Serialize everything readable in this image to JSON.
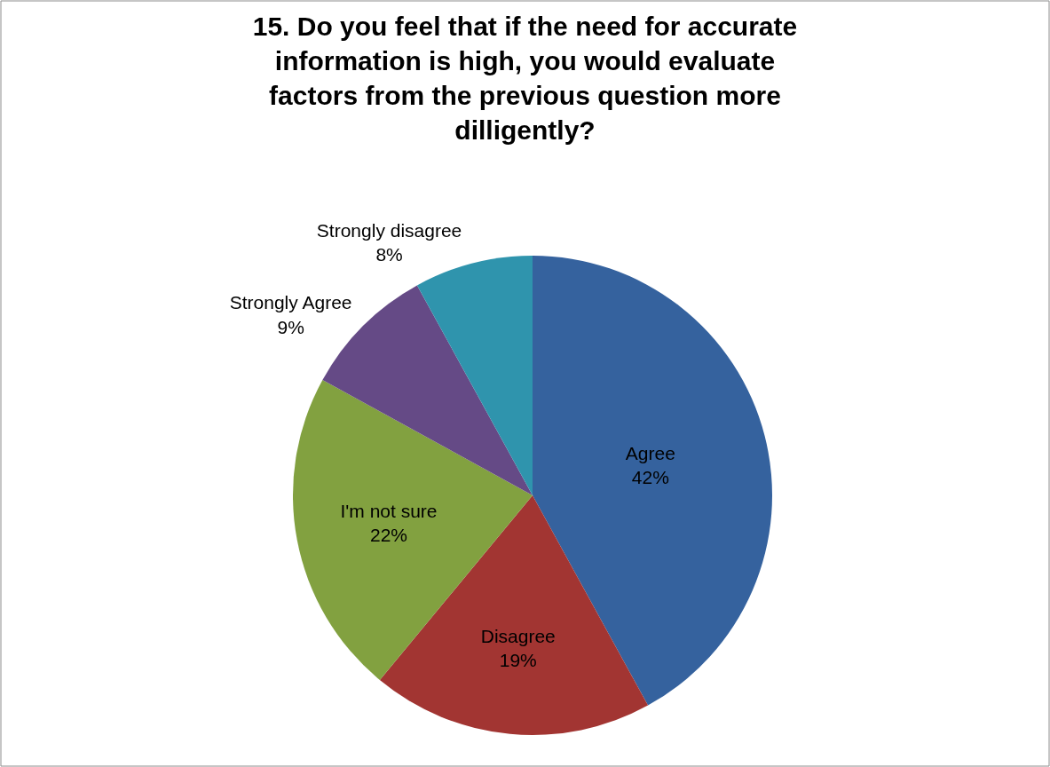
{
  "chart_data": {
    "type": "pie",
    "title": "15. Do you feel that if the need for accurate information is high, you would evaluate factors from the previous question more dilligently?",
    "categories": [
      "Agree",
      "Disagree",
      "I'm not sure",
      "Strongly Agree",
      "Strongly disagree"
    ],
    "values": [
      42,
      19,
      22,
      9,
      8
    ],
    "colors": [
      "#35629e",
      "#a23532",
      "#82a140",
      "#654a86",
      "#2f94ad"
    ],
    "value_labels": [
      "42%",
      "19%",
      "22%",
      "9%",
      "8%"
    ],
    "legend": false
  }
}
